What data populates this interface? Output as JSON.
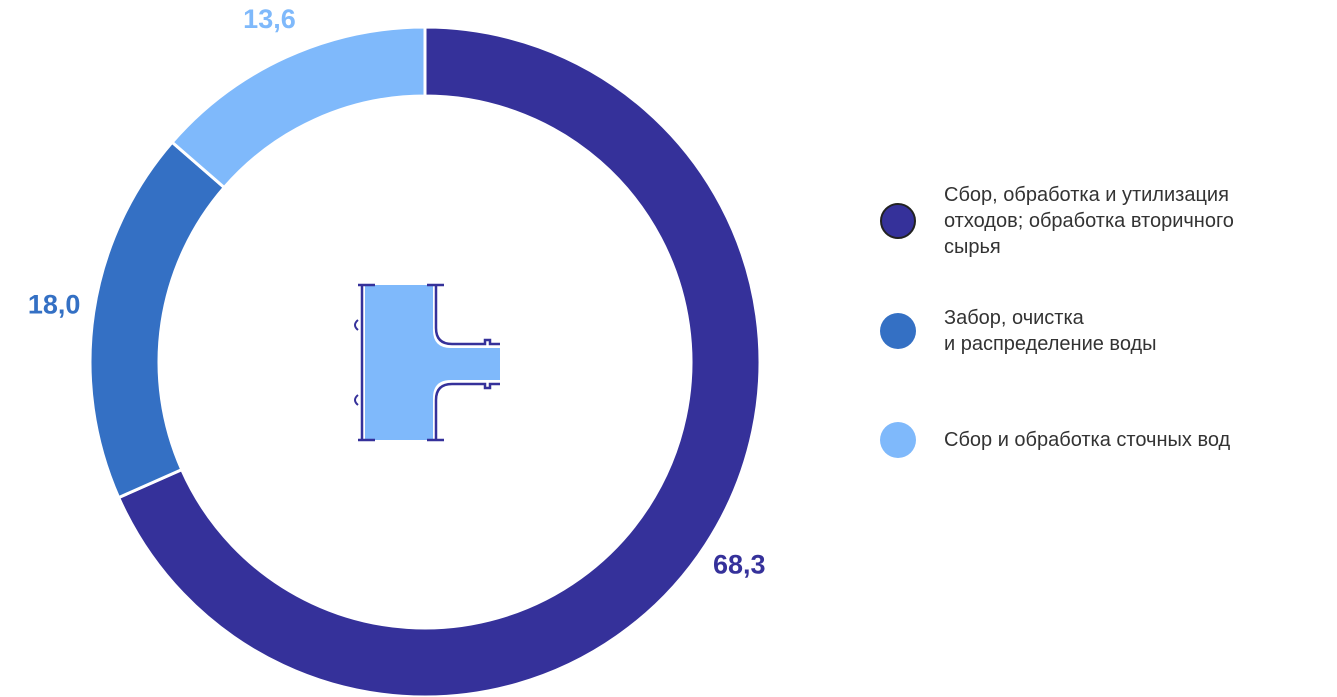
{
  "chart_data": {
    "type": "donut",
    "categories": [
      "Сбор, обработка и утилизация\nотходов; обработка вторичного\nсырья",
      "Забор, очистка\nи распределение воды",
      "Сбор и обработка сточных вод"
    ],
    "values": [
      68.3,
      18.0,
      13.6
    ],
    "value_labels": [
      "68,3",
      "18,0",
      "13,6"
    ],
    "colors": [
      "#35319a",
      "#3470c4",
      "#7fb9fb"
    ],
    "legend": "right"
  }
}
